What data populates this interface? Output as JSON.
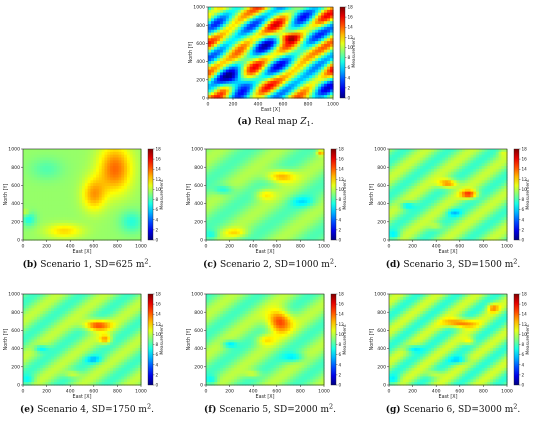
{
  "chart_data": [
    {
      "type": "heatmap",
      "panel_id": "a",
      "caption": {
        "label": "(a)",
        "text": "Real map",
        "math": "Z",
        "subscript": "1",
        "suffix": "."
      },
      "xlabel": "East [X]",
      "ylabel": "North [Y]",
      "xlim": [
        0,
        1000
      ],
      "ylim": [
        0,
        1000
      ],
      "xticks": [
        0,
        200,
        400,
        600,
        800,
        1000
      ],
      "yticks": [
        0,
        200,
        400,
        600,
        800,
        1000
      ],
      "colorbar": {
        "label": "Measurement",
        "min": 0,
        "max": 18,
        "ticks": [
          0,
          2,
          4,
          6,
          8,
          10,
          12,
          14,
          16,
          18
        ]
      },
      "colormap": "jet",
      "field": {
        "style": "rough",
        "baseline": 9,
        "description": "high-variance field with alternating high and low diagonal stripes"
      }
    },
    {
      "type": "heatmap",
      "panel_id": "b",
      "caption": {
        "label": "(b)",
        "text": "Scenario 1, SD=625 m",
        "sup": "2",
        "suffix": "."
      },
      "xlabel": "East [X]",
      "ylabel": "North [Y]",
      "xlim": [
        0,
        1000
      ],
      "ylim": [
        0,
        1000
      ],
      "xticks": [
        0,
        200,
        400,
        600,
        800,
        1000
      ],
      "yticks": [
        0,
        200,
        400,
        600,
        800,
        1000
      ],
      "colorbar": {
        "label": "Measurement",
        "min": 0,
        "max": 18,
        "ticks": [
          0,
          2,
          4,
          6,
          8,
          10,
          12,
          14,
          16,
          18
        ]
      },
      "colormap": "jet",
      "field": {
        "style": "s1",
        "baseline": 9
      }
    },
    {
      "type": "heatmap",
      "panel_id": "c",
      "caption": {
        "label": "(c)",
        "text": "Scenario 2, SD=1000 m",
        "sup": "2",
        "suffix": "."
      },
      "xlabel": "East [X]",
      "ylabel": "North [Y]",
      "xlim": [
        0,
        1000
      ],
      "ylim": [
        0,
        1000
      ],
      "xticks": [
        0,
        200,
        400,
        600,
        800,
        1000
      ],
      "yticks": [
        0,
        200,
        400,
        600,
        800,
        1000
      ],
      "colorbar": {
        "label": "Measurement",
        "min": 0,
        "max": 18,
        "ticks": [
          0,
          2,
          4,
          6,
          8,
          10,
          12,
          14,
          16,
          18
        ]
      },
      "colormap": "jet",
      "field": {
        "style": "s2",
        "baseline": 9
      }
    },
    {
      "type": "heatmap",
      "panel_id": "d",
      "caption": {
        "label": "(d)",
        "text": "Scenario 3, SD=1500 m",
        "sup": "2",
        "suffix": "."
      },
      "xlabel": "East [X]",
      "ylabel": "North [Y]",
      "xlim": [
        0,
        1000
      ],
      "ylim": [
        0,
        1000
      ],
      "xticks": [
        0,
        200,
        400,
        600,
        800,
        1000
      ],
      "yticks": [
        0,
        200,
        400,
        600,
        800,
        1000
      ],
      "colorbar": {
        "label": "Measurement",
        "min": 0,
        "max": 18,
        "ticks": [
          0,
          2,
          4,
          6,
          8,
          10,
          12,
          14,
          16,
          18
        ]
      },
      "colormap": "jet",
      "field": {
        "style": "s3",
        "baseline": 9
      }
    },
    {
      "type": "heatmap",
      "panel_id": "e",
      "caption": {
        "label": "(e)",
        "text": "Scenario 4, SD=1750 m",
        "sup": "2",
        "suffix": "."
      },
      "xlabel": "East [X]",
      "ylabel": "North [Y]",
      "xlim": [
        0,
        1000
      ],
      "ylim": [
        0,
        1000
      ],
      "xticks": [
        0,
        200,
        400,
        600,
        800,
        1000
      ],
      "yticks": [
        0,
        200,
        400,
        600,
        800,
        1000
      ],
      "colorbar": {
        "label": "Measurement",
        "min": 0,
        "max": 18,
        "ticks": [
          0,
          2,
          4,
          6,
          8,
          10,
          12,
          14,
          16,
          18
        ]
      },
      "colormap": "jet",
      "field": {
        "style": "s4",
        "baseline": 9
      }
    },
    {
      "type": "heatmap",
      "panel_id": "f",
      "caption": {
        "label": "(f)",
        "text": "Scenario 5, SD=2000 m",
        "sup": "2",
        "suffix": "."
      },
      "xlabel": "East [X]",
      "ylabel": "North [Y]",
      "xlim": [
        0,
        1000
      ],
      "ylim": [
        0,
        1000
      ],
      "xticks": [
        0,
        200,
        400,
        600,
        800,
        1000
      ],
      "yticks": [
        0,
        200,
        400,
        600,
        800,
        1000
      ],
      "colorbar": {
        "label": "Measurement",
        "min": 0,
        "max": 18,
        "ticks": [
          0,
          2,
          4,
          6,
          8,
          10,
          12,
          14,
          16,
          18
        ]
      },
      "colormap": "jet",
      "field": {
        "style": "s5",
        "baseline": 9
      }
    },
    {
      "type": "heatmap",
      "panel_id": "g",
      "caption": {
        "label": "(g)",
        "text": "Scenario 6, SD=3000 m",
        "sup": "2",
        "suffix": "."
      },
      "xlabel": "East [X]",
      "ylabel": "North [Y]",
      "xlim": [
        0,
        1000
      ],
      "ylim": [
        0,
        1000
      ],
      "xticks": [
        0,
        200,
        400,
        600,
        800,
        1000
      ],
      "yticks": [
        0,
        200,
        400,
        600,
        800,
        1000
      ],
      "colorbar": {
        "label": "Measurement",
        "min": 0,
        "max": 18,
        "ticks": [
          0,
          2,
          4,
          6,
          8,
          10,
          12,
          14,
          16,
          18
        ]
      },
      "colormap": "jet",
      "field": {
        "style": "s6",
        "baseline": 9
      }
    }
  ]
}
